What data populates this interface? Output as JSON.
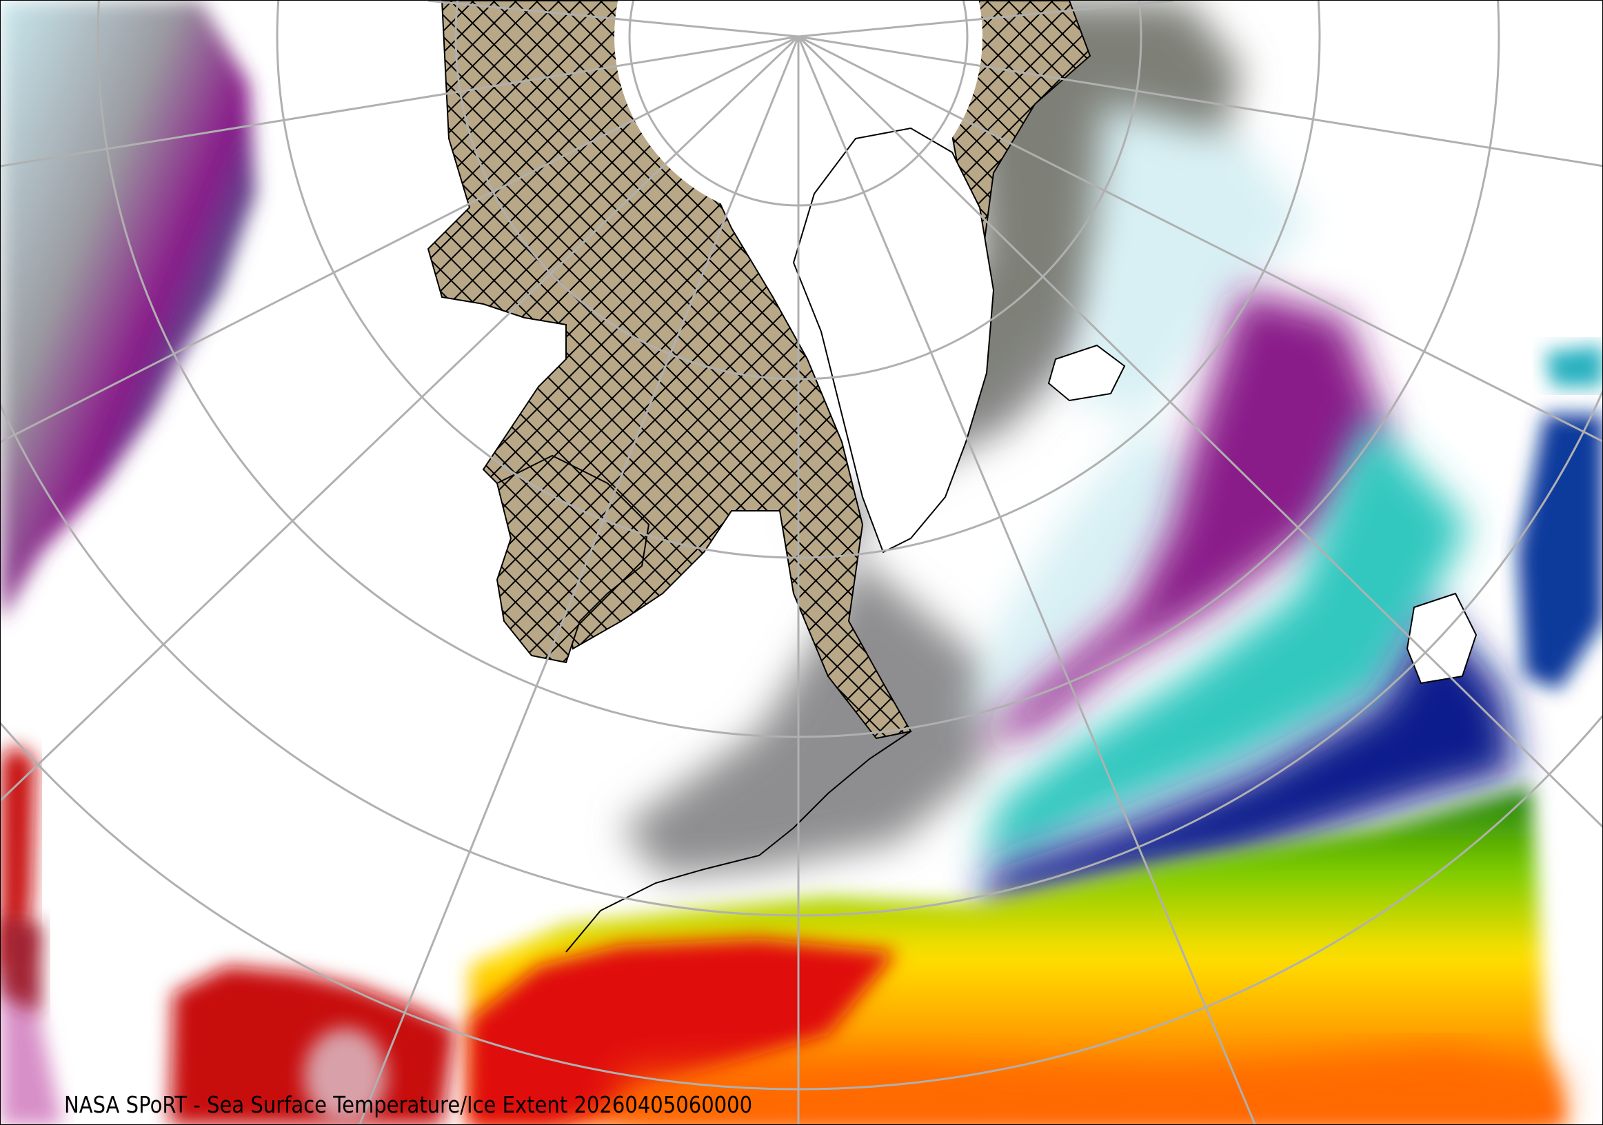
{
  "map": {
    "caption": "NASA SPoRT - Sea Surface Temperature/Ice Extent 20260405060000",
    "projection": "polar stereographic (north pole)",
    "layers": [
      "sea-surface-temperature",
      "ice-extent",
      "coastlines",
      "state-borders",
      "graticule"
    ],
    "colors": {
      "warm": "#d40000",
      "hot": "#ffdd00",
      "mild": "#4caf00",
      "cool": "#0a1a8c",
      "cold": "#30c8c0",
      "colder": "#8a1a8a",
      "near_freezing": "#d8f0f4",
      "ice_sea": "#7c7c74",
      "ice_land_hatch": "#b8a888",
      "graticule": "#b0b0b0"
    }
  }
}
